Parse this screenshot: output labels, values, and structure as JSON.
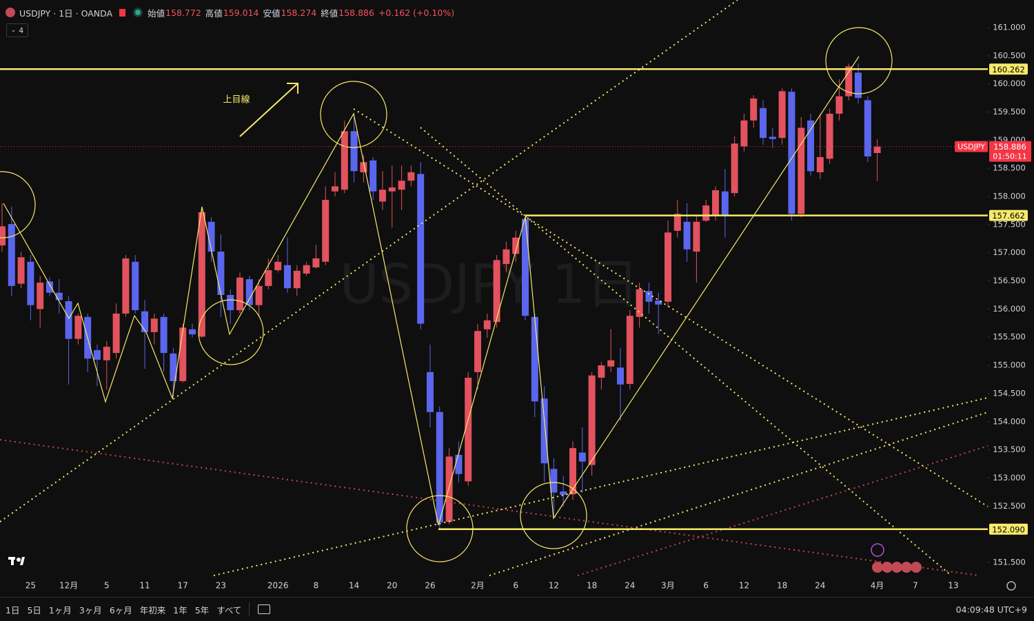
{
  "chart_data": {
    "type": "candlestick",
    "title": "USDJPY · 1日 · OANDA",
    "watermark": "USDJPY 1日",
    "annotation": "上目線",
    "countdown": "01:50:11",
    "up_color": "#e2525f",
    "down_color": "#5b66ee",
    "categories": [
      null,
      null,
      null,
      "25",
      null,
      null,
      null,
      "12月",
      null,
      null,
      null,
      "5",
      null,
      null,
      null,
      "11",
      null,
      null,
      null,
      "17",
      null,
      null,
      null,
      "23",
      null,
      null,
      null,
      null,
      null,
      "2026",
      null,
      null,
      null,
      "8",
      null,
      null,
      null,
      "14",
      null,
      null,
      null,
      "20",
      null,
      null,
      null,
      "26",
      null,
      null,
      null,
      null,
      "2月",
      null,
      null,
      null,
      "6",
      null,
      null,
      null,
      "12",
      null,
      null,
      null,
      "18",
      null,
      null,
      null,
      "24",
      null,
      null,
      null,
      "3月",
      null,
      null,
      null,
      "6",
      null,
      null,
      null,
      "12",
      null,
      null,
      null,
      "18",
      null,
      null,
      null,
      "24",
      null,
      null,
      null,
      null,
      null,
      "4月",
      null,
      null,
      null,
      "7",
      null,
      null,
      null,
      "13",
      null,
      null,
      null
    ],
    "series": [
      {
        "name": "USDJPY",
        "open": [
          157.13,
          157.51,
          156.45,
          156.84,
          156.0,
          156.49,
          156.29,
          156.14,
          155.47,
          155.86,
          155.27,
          155.09,
          155.22,
          155.92,
          156.84,
          155.96,
          155.59,
          155.86,
          155.21,
          154.72,
          155.64,
          155.51,
          157.55,
          157.02,
          156.25,
          155.98,
          156.53,
          156.07,
          156.41,
          156.69,
          156.78,
          156.37,
          156.63,
          156.74,
          156.84,
          158.09,
          158.12,
          159.16,
          158.43,
          158.64,
          157.91,
          158.09,
          158.12,
          158.28,
          158.4,
          154.88,
          154.17,
          152.22,
          153.41,
          152.94,
          154.88,
          155.64,
          155.77,
          156.8,
          156.98,
          157.6,
          155.86,
          154.41,
          153.16,
          152.76,
          152.71,
          153.45,
          153.23,
          154.78,
          154.98,
          154.96,
          154.67,
          155.86,
          156.32,
          156.15,
          156.13,
          157.39,
          157.55,
          157.02,
          157.57,
          157.66,
          158.09,
          158.06,
          158.89,
          159.35,
          159.57,
          159.06,
          159.04,
          159.86,
          157.69,
          159.35,
          158.43,
          158.67,
          159.47,
          159.78,
          160.2,
          159.71,
          158.772,
          null,
          null,
          null,
          null,
          null,
          null,
          null,
          null,
          null,
          null,
          null
        ],
        "high": [
          157.88,
          157.82,
          157.02,
          156.96,
          156.59,
          156.56,
          156.53,
          156.23,
          155.92,
          155.92,
          155.37,
          155.43,
          156.1,
          156.96,
          156.96,
          156.16,
          155.92,
          155.92,
          155.31,
          155.74,
          155.74,
          157.82,
          157.63,
          157.33,
          156.35,
          156.65,
          156.59,
          156.53,
          156.9,
          156.96,
          157.27,
          156.78,
          156.84,
          157.14,
          158.18,
          158.43,
          159.35,
          159.47,
          158.74,
          158.7,
          158.45,
          158.55,
          158.55,
          158.55,
          158.61,
          155.37,
          154.27,
          153.53,
          153.65,
          154.88,
          155.74,
          155.92,
          156.96,
          157.2,
          157.39,
          157.66,
          155.92,
          154.63,
          153.35,
          153.04,
          153.65,
          153.9,
          154.88,
          155.06,
          155.64,
          155.31,
          155.98,
          156.47,
          156.47,
          156.29,
          157.57,
          157.94,
          157.88,
          157.67,
          157.94,
          158.18,
          158.49,
          159.07,
          159.47,
          159.8,
          159.71,
          159.22,
          159.92,
          159.92,
          159.41,
          159.47,
          159.47,
          159.56,
          160.08,
          160.36,
          160.36,
          159.78,
          159.014,
          null,
          null,
          null,
          null,
          null,
          null,
          null,
          null,
          null,
          null,
          null
        ],
        "low": [
          157.02,
          156.23,
          156.37,
          155.8,
          155.67,
          156.23,
          155.92,
          154.66,
          155.37,
          154.88,
          154.63,
          154.57,
          155.12,
          155.86,
          155.92,
          154.94,
          155.37,
          154.88,
          154.43,
          154.69,
          155.49,
          155.49,
          156.84,
          155.86,
          155.74,
          155.92,
          155.98,
          155.86,
          156.35,
          156.65,
          156.29,
          156.23,
          156.59,
          156.72,
          156.78,
          158.0,
          158.06,
          158.25,
          158.25,
          157.94,
          157.76,
          157.45,
          157.76,
          158.18,
          155.64,
          153.9,
          152.09,
          152.18,
          152.92,
          152.86,
          154.57,
          155.49,
          155.67,
          156.65,
          156.84,
          155.8,
          154.08,
          152.92,
          152.28,
          152.49,
          152.61,
          152.74,
          153.04,
          154.57,
          154.88,
          154.02,
          154.57,
          155.67,
          155.92,
          155.55,
          156.04,
          157.27,
          156.84,
          156.47,
          157.55,
          157.57,
          157.27,
          158.0,
          158.8,
          159.22,
          158.92,
          158.86,
          158.92,
          157.57,
          157.63,
          158.37,
          158.31,
          158.58,
          159.35,
          159.71,
          159.65,
          158.61,
          158.274,
          null,
          null,
          null,
          null,
          null,
          null,
          null,
          null,
          null,
          null,
          null
        ],
        "close": [
          157.47,
          156.41,
          156.92,
          156.07,
          156.47,
          156.29,
          156.16,
          155.47,
          155.88,
          155.12,
          155.1,
          155.33,
          155.92,
          156.9,
          155.98,
          155.59,
          155.83,
          155.22,
          154.72,
          155.67,
          155.55,
          157.72,
          157.02,
          156.25,
          155.98,
          156.56,
          156.07,
          156.41,
          156.69,
          156.84,
          156.37,
          156.68,
          156.78,
          156.9,
          157.94,
          158.18,
          159.16,
          158.45,
          158.61,
          158.09,
          158.12,
          158.16,
          158.28,
          158.43,
          155.74,
          154.17,
          152.21,
          153.38,
          153.07,
          154.78,
          155.61,
          155.8,
          156.87,
          157.06,
          157.27,
          155.88,
          154.36,
          153.26,
          152.74,
          152.7,
          153.53,
          153.29,
          154.82,
          155.0,
          155.09,
          154.66,
          155.88,
          156.35,
          156.13,
          156.08,
          157.36,
          157.69,
          157.06,
          157.55,
          157.84,
          158.11,
          157.66,
          158.94,
          159.35,
          159.74,
          159.04,
          159.02,
          159.87,
          157.69,
          159.22,
          158.45,
          158.7,
          159.47,
          159.78,
          160.31,
          159.75,
          158.71,
          158.886,
          null,
          null,
          null,
          null,
          null,
          null,
          null,
          null,
          null,
          null,
          null
        ]
      }
    ],
    "ylim": [
      151.23,
      161.49
    ],
    "yticks": [
      {
        "value": 151.5,
        "label": "151.500"
      },
      {
        "value": 152.5,
        "label": "152.500"
      },
      {
        "value": 153,
        "label": "153.000"
      },
      {
        "value": 153.5,
        "label": "153.500"
      },
      {
        "value": 154,
        "label": "154.000"
      },
      {
        "value": 154.5,
        "label": "154.500"
      },
      {
        "value": 155,
        "label": "155.000"
      },
      {
        "value": 155.5,
        "label": "155.500"
      },
      {
        "value": 156,
        "label": "156.000"
      },
      {
        "value": 156.5,
        "label": "156.500"
      },
      {
        "value": 157,
        "label": "157.000"
      },
      {
        "value": 157.5,
        "label": "157.500"
      },
      {
        "value": 158,
        "label": "158.000"
      },
      {
        "value": 158.5,
        "label": "158.500"
      },
      {
        "value": 159,
        "label": "159.000"
      },
      {
        "value": 159.5,
        "label": "159.500"
      },
      {
        "value": 160,
        "label": "160.000"
      },
      {
        "value": 160.5,
        "label": "160.500"
      },
      {
        "value": 161,
        "label": "161.000"
      }
    ],
    "hlines": [
      {
        "value": 160.262,
        "label": "160.262"
      },
      {
        "value": 157.662,
        "label": "157.662"
      },
      {
        "value": 152.09,
        "label": "152.090"
      }
    ],
    "hline_color": "#f7ea6a",
    "price_line_color": "#f23645",
    "grid": false
  },
  "header": {
    "open_label": "始値",
    "high_label": "高値",
    "low_label": "安値",
    "close_label": "終値",
    "change": "+0.162 (+0.10%)",
    "indicators": "4"
  },
  "toolbar": {
    "ranges": [
      "1日",
      "5日",
      "1ヶ月",
      "3ヶ月",
      "6ヶ月",
      "年初来",
      "1年",
      "5年",
      "すべて"
    ],
    "time": "04:09:48 UTC+9"
  }
}
